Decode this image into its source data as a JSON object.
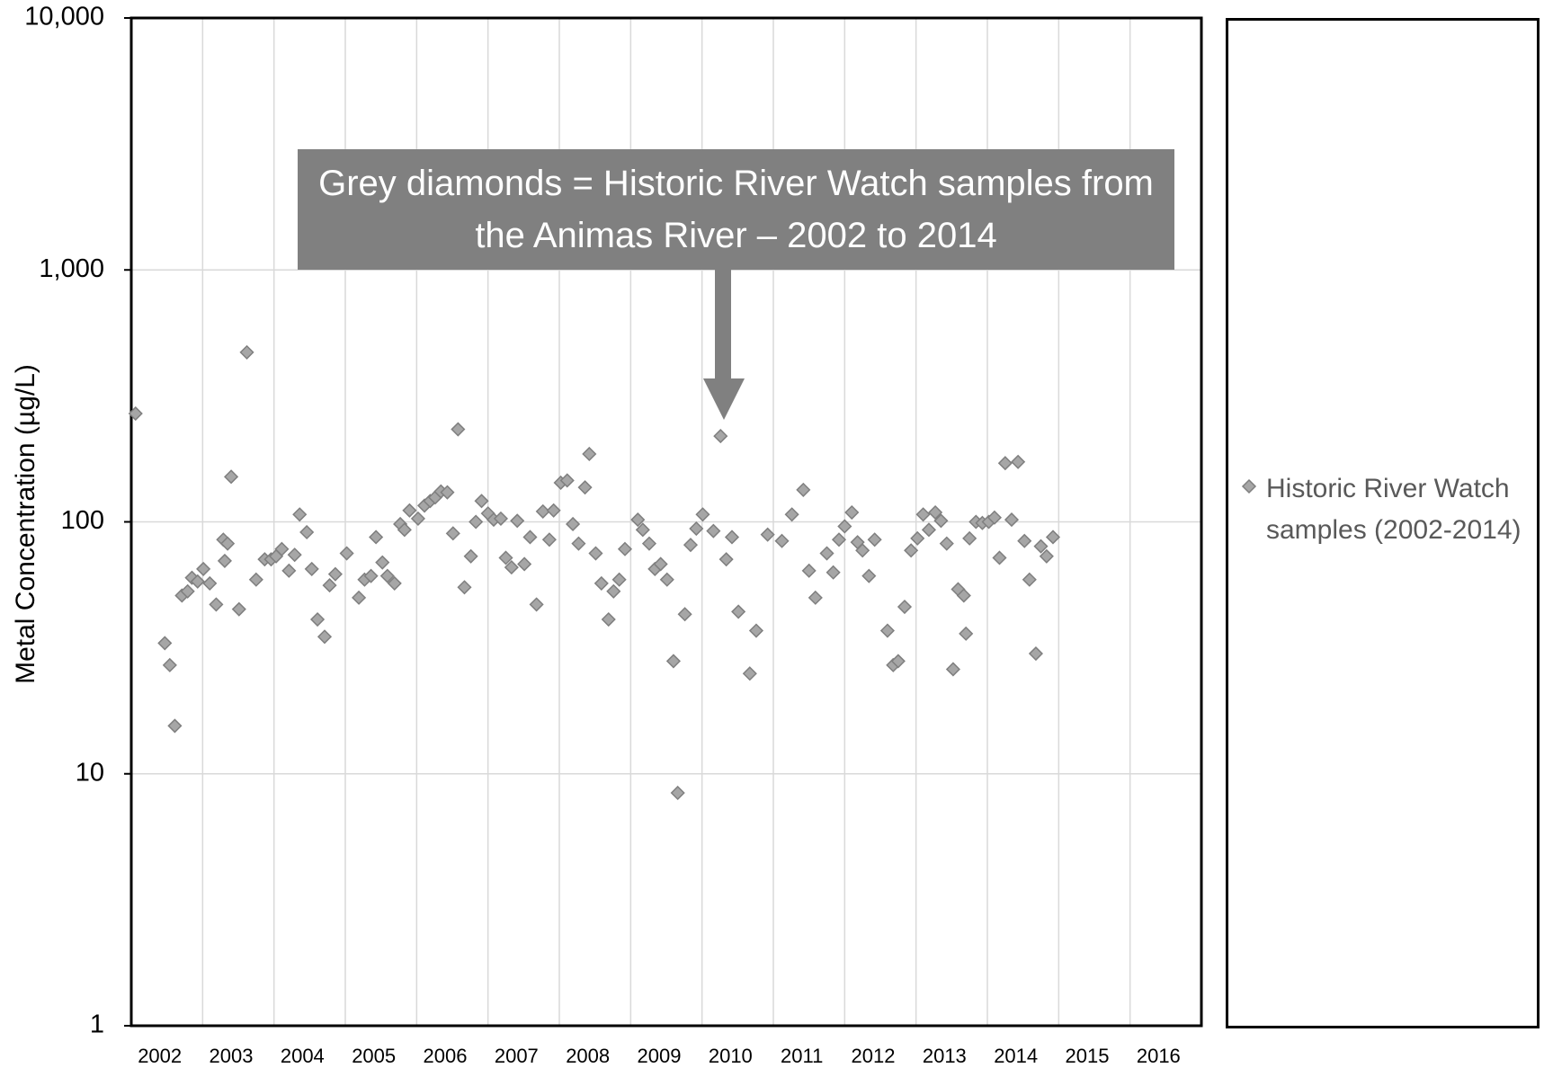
{
  "chart_data": {
    "type": "scatter",
    "y_label": "Metal Concentration (µg/L)",
    "annotation": "Grey diamonds = Historic River Watch samples from the Animas River – 2002 to 2014",
    "log_y": true,
    "grid": true,
    "legend": "right",
    "xlim": [
      2002,
      2017
    ],
    "xticks": [
      2002,
      2003,
      2004,
      2005,
      2006,
      2007,
      2008,
      2009,
      2010,
      2011,
      2012,
      2013,
      2014,
      2015,
      2016
    ],
    "ylim": [
      1,
      10000
    ],
    "yticks": [
      1,
      10,
      100,
      {
        "value": 1000,
        "label": "1,000"
      },
      {
        "value": 10000,
        "label": "10,000"
      }
    ],
    "series": [
      {
        "name": "Historic River Watch samples (2002-2014)",
        "color": "#a6a6a6",
        "x": [
          2002.06,
          2002.47,
          2002.54,
          2002.61,
          2002.71,
          2002.79,
          2002.85,
          2002.93,
          2003.01,
          2003.1,
          2003.19,
          2003.29,
          2003.31,
          2003.35,
          2003.4,
          2003.51,
          2003.62,
          2003.75,
          2003.87,
          2003.96,
          2004.03,
          2004.11,
          2004.21,
          2004.29,
          2004.36,
          2004.46,
          2004.53,
          2004.61,
          2004.71,
          2004.78,
          2004.86,
          2005.02,
          2005.19,
          2005.27,
          2005.36,
          2005.43,
          2005.52,
          2005.59,
          2005.69,
          2005.77,
          2005.83,
          2005.9,
          2006.02,
          2006.11,
          2006.19,
          2006.26,
          2006.34,
          2006.43,
          2006.51,
          2006.58,
          2006.67,
          2006.76,
          2006.83,
          2006.91,
          2007.0,
          2007.08,
          2007.18,
          2007.25,
          2007.33,
          2007.41,
          2007.51,
          2007.59,
          2007.68,
          2007.77,
          2007.86,
          2007.92,
          2008.02,
          2008.11,
          2008.19,
          2008.27,
          2008.36,
          2008.42,
          2008.51,
          2008.59,
          2008.69,
          2008.76,
          2008.84,
          2008.92,
          2009.1,
          2009.17,
          2009.26,
          2009.34,
          2009.42,
          2009.51,
          2009.6,
          2009.66,
          2009.76,
          2009.84,
          2009.92,
          2010.01,
          2010.16,
          2010.26,
          2010.34,
          2010.42,
          2010.51,
          2010.67,
          2010.76,
          2010.92,
          2011.12,
          2011.26,
          2011.42,
          2011.5,
          2011.59,
          2011.75,
          2011.84,
          2011.92,
          2012.0,
          2012.1,
          2012.18,
          2012.25,
          2012.34,
          2012.42,
          2012.6,
          2012.68,
          2012.75,
          2012.84,
          2012.93,
          2013.02,
          2013.1,
          2013.18,
          2013.27,
          2013.35,
          2013.43,
          2013.52,
          2013.59,
          2013.67,
          2013.7,
          2013.75,
          2013.84,
          2013.93,
          2014.02,
          2014.1,
          2014.17,
          2014.25,
          2014.34,
          2014.43,
          2014.52,
          2014.59,
          2014.68,
          2014.75,
          2014.83,
          2014.92
        ],
        "values": [
          269,
          33,
          27,
          15.5,
          51,
          53,
          60,
          58,
          65,
          57,
          47,
          85,
          70,
          82,
          151,
          45,
          471,
          59,
          71,
          71,
          73,
          78,
          64,
          74,
          107,
          91,
          65,
          41,
          35,
          56,
          62,
          75,
          50,
          59,
          61,
          87,
          69,
          61,
          57,
          98,
          93,
          111,
          103,
          116,
          121,
          125,
          132,
          131,
          90,
          233,
          55,
          73,
          100,
          121,
          108,
          102,
          103,
          72,
          66,
          101,
          68,
          87,
          47,
          110,
          85,
          111,
          143,
          146,
          98,
          82,
          137,
          186,
          75,
          57,
          41,
          53,
          59,
          78,
          102,
          93,
          82,
          65,
          68,
          59,
          28,
          8.4,
          43,
          81,
          94,
          107,
          92,
          219,
          71,
          87,
          44,
          25,
          37,
          89,
          84,
          107,
          134,
          64,
          50,
          75,
          63,
          85,
          96,
          109,
          83,
          77,
          61,
          85,
          37,
          27,
          28,
          46,
          77,
          86,
          107,
          93,
          109,
          101,
          82,
          26,
          54,
          51,
          36,
          86,
          100,
          99,
          100,
          104,
          72,
          171,
          102,
          173,
          84,
          59,
          30,
          80,
          73,
          87
        ]
      }
    ]
  }
}
